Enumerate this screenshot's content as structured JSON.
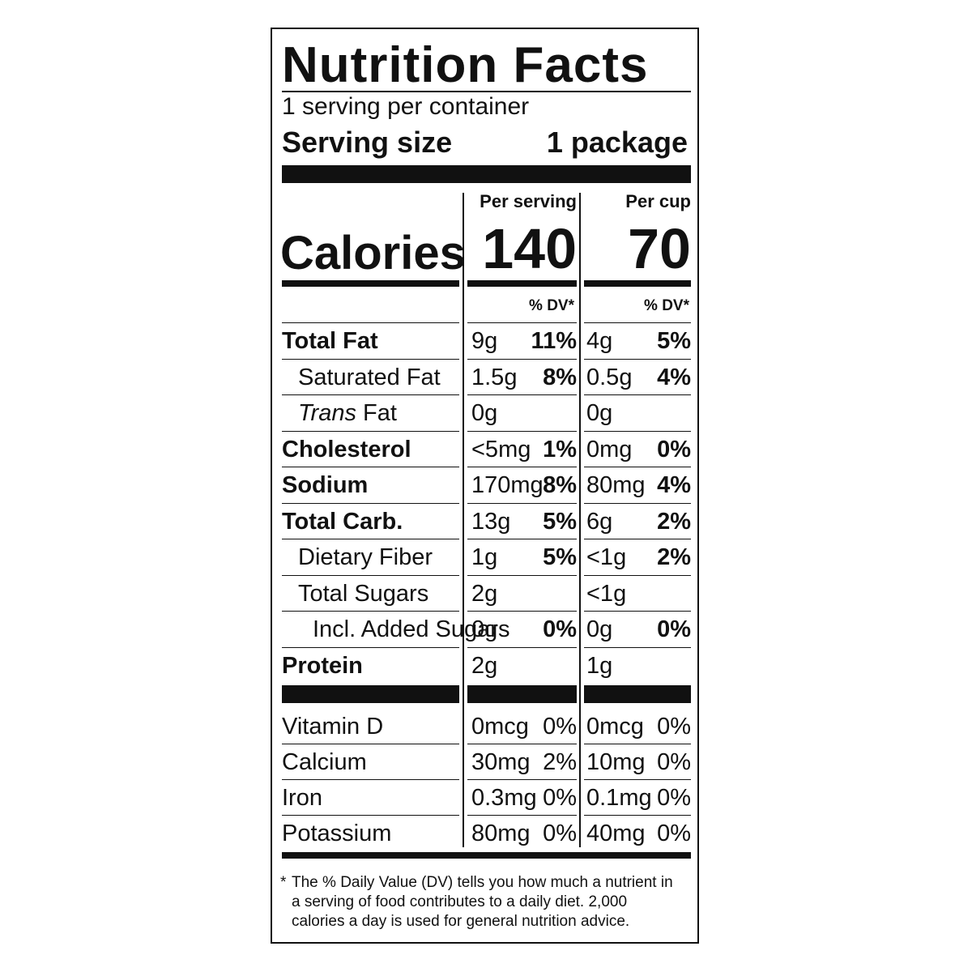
{
  "title": "Nutrition Facts",
  "servings_per_container": "1 serving per container",
  "serving_size_label": "Serving size",
  "serving_size_value": "1 package",
  "columns": {
    "per_serving": "Per serving",
    "per_cup": "Per cup"
  },
  "calories": {
    "label": "Calories",
    "per_serving": "140",
    "per_cup": "70"
  },
  "dv_header": "% DV*",
  "nutrients": [
    {
      "name": "Total Fat",
      "style": "bold",
      "s_amt": "9g",
      "s_dv": "11%",
      "c_amt": "4g",
      "c_dv": "5%"
    },
    {
      "name": "Saturated Fat",
      "style": "indent",
      "s_amt": "1.5g",
      "s_dv": "8%",
      "c_amt": "0.5g",
      "c_dv": "4%"
    },
    {
      "name_italic": "Trans",
      "name_rest": " Fat",
      "style": "indent",
      "s_amt": "0g",
      "s_dv": "",
      "c_amt": "0g",
      "c_dv": ""
    },
    {
      "name": "Cholesterol",
      "style": "bold",
      "s_amt": "<5mg",
      "s_dv": "1%",
      "c_amt": "0mg",
      "c_dv": "0%"
    },
    {
      "name": "Sodium",
      "style": "bold",
      "s_amt": "170mg",
      "s_dv": "8%",
      "c_amt": "80mg",
      "c_dv": "4%"
    },
    {
      "name": "Total Carb.",
      "style": "bold",
      "s_amt": "13g",
      "s_dv": "5%",
      "c_amt": "6g",
      "c_dv": "2%"
    },
    {
      "name": "Dietary Fiber",
      "style": "indent",
      "s_amt": "1g",
      "s_dv": "5%",
      "c_amt": "<1g",
      "c_dv": "2%"
    },
    {
      "name": "Total Sugars",
      "style": "indent",
      "s_amt": "2g",
      "s_dv": "",
      "c_amt": "<1g",
      "c_dv": ""
    },
    {
      "name": "Incl. Added Sugars",
      "style": "indent2",
      "s_amt": "0g",
      "s_dv": "0%",
      "c_amt": "0g",
      "c_dv": "0%"
    },
    {
      "name": "Protein",
      "style": "bold",
      "s_amt": "2g",
      "s_dv": "",
      "c_amt": "1g",
      "c_dv": ""
    }
  ],
  "vitamins": [
    {
      "name": "Vitamin D",
      "s_amt": "0mcg",
      "s_dv": "0%",
      "c_amt": "0mcg",
      "c_dv": "0%"
    },
    {
      "name": "Calcium",
      "s_amt": "30mg",
      "s_dv": "2%",
      "c_amt": "10mg",
      "c_dv": "0%"
    },
    {
      "name": "Iron",
      "s_amt": "0.3mg",
      "s_dv": "0%",
      "c_amt": "0.1mg",
      "c_dv": "0%"
    },
    {
      "name": "Potassium",
      "s_amt": "80mg",
      "s_dv": "0%",
      "c_amt": "40mg",
      "c_dv": "0%"
    }
  ],
  "footnote_star": "*",
  "footnote": "The % Daily Value (DV) tells you how much a nutrient in a serving of food contributes to a daily diet. 2,000 calories a day is used for general nutrition advice."
}
